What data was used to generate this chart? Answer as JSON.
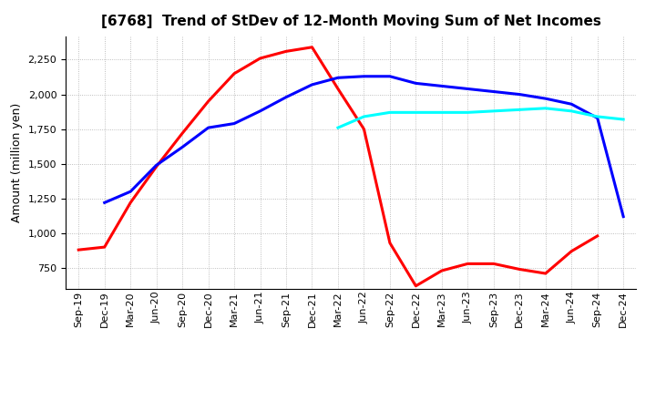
{
  "title": "[6768]  Trend of StDev of 12-Month Moving Sum of Net Incomes",
  "ylabel": "Amount (million yen)",
  "x_labels": [
    "Sep-19",
    "Dec-19",
    "Mar-20",
    "Jun-20",
    "Sep-20",
    "Dec-20",
    "Mar-21",
    "Jun-21",
    "Sep-21",
    "Dec-21",
    "Mar-22",
    "Jun-22",
    "Sep-22",
    "Dec-22",
    "Mar-23",
    "Jun-23",
    "Sep-23",
    "Dec-23",
    "Mar-24",
    "Jun-24",
    "Sep-24",
    "Dec-24"
  ],
  "series": {
    "3 Years": {
      "color": "#FF0000",
      "data_x": [
        0,
        1,
        2,
        3,
        4,
        5,
        6,
        7,
        8,
        9,
        10,
        11,
        12,
        13,
        14,
        15,
        16,
        17,
        18,
        19,
        20
      ],
      "data_y": [
        880,
        900,
        1220,
        1480,
        1720,
        1950,
        2150,
        2260,
        2310,
        2340,
        2040,
        1750,
        930,
        620,
        730,
        780,
        780,
        740,
        710,
        870,
        980
      ]
    },
    "5 Years": {
      "color": "#0000FF",
      "data_x": [
        1,
        2,
        3,
        4,
        5,
        6,
        7,
        8,
        9,
        10,
        11,
        12,
        13,
        14,
        15,
        16,
        17,
        18,
        19,
        20,
        21
      ],
      "data_y": [
        1220,
        1300,
        1490,
        1620,
        1760,
        1790,
        1880,
        1980,
        2070,
        2120,
        2130,
        2130,
        2080,
        2060,
        2040,
        2020,
        2000,
        1970,
        1930,
        1830,
        1120
      ]
    },
    "7 Years": {
      "color": "#00FFFF",
      "data_x": [
        10,
        11,
        12,
        13,
        14,
        15,
        16,
        17,
        18,
        19,
        20,
        21
      ],
      "data_y": [
        1760,
        1840,
        1870,
        1870,
        1870,
        1870,
        1880,
        1890,
        1900,
        1880,
        1840,
        1820
      ]
    },
    "10 Years": {
      "color": "#008000",
      "data_x": [],
      "data_y": []
    }
  },
  "ylim": [
    600,
    2420
  ],
  "yticks": [
    750,
    1000,
    1250,
    1500,
    1750,
    2000,
    2250
  ],
  "background_color": "#FFFFFF",
  "grid_color": "#999999",
  "title_fontsize": 11,
  "axis_label_fontsize": 9,
  "tick_fontsize": 8,
  "legend_fontsize": 9,
  "linewidth": 2.2
}
